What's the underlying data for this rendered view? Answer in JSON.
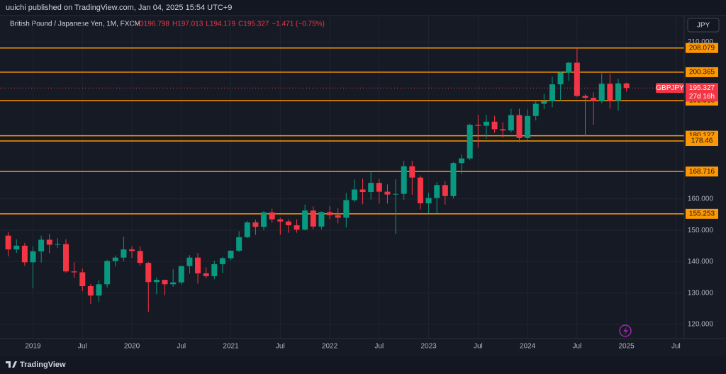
{
  "header": {
    "published": "uuichi published on TradingView.com, Jan 04, 2025 15:54 UTC+9"
  },
  "footer": {
    "brand": "TradingView"
  },
  "chart_data": {
    "type": "candlestick",
    "title": "British Pound / Japanese Yen, 1M, FXCM",
    "legend_values": [
      "O196.798",
      "H197.013",
      "L194.179",
      "C195.327",
      "−1.471 (−0.75%)"
    ],
    "currency": "JPY",
    "symbol": "GBPJPY",
    "countdown": "27d 16h",
    "up_color": "#089981",
    "down_color": "#f23645",
    "level_color": "#ff9800",
    "grid": true,
    "x": [
      "2018-10",
      "2018-11",
      "2018-12",
      "2019-01",
      "2019-02",
      "2019-03",
      "2019-04",
      "2019-05",
      "2019-06",
      "2019-07",
      "2019-08",
      "2019-09",
      "2019-10",
      "2019-11",
      "2019-12",
      "2020-01",
      "2020-02",
      "2020-03",
      "2020-04",
      "2020-05",
      "2020-06",
      "2020-07",
      "2020-08",
      "2020-09",
      "2020-10",
      "2020-11",
      "2020-12",
      "2021-01",
      "2021-02",
      "2021-03",
      "2021-04",
      "2021-05",
      "2021-06",
      "2021-07",
      "2021-08",
      "2021-09",
      "2021-10",
      "2021-11",
      "2021-12",
      "2022-01",
      "2022-02",
      "2022-03",
      "2022-04",
      "2022-05",
      "2022-06",
      "2022-07",
      "2022-08",
      "2022-09",
      "2022-10",
      "2022-11",
      "2022-12",
      "2023-01",
      "2023-02",
      "2023-03",
      "2023-04",
      "2023-05",
      "2023-06",
      "2023-07",
      "2023-08",
      "2023-09",
      "2023-10",
      "2023-11",
      "2023-12",
      "2024-01",
      "2024-02",
      "2024-03",
      "2024-04",
      "2024-05",
      "2024-06",
      "2024-07",
      "2024-08",
      "2024-09",
      "2024-10",
      "2024-11",
      "2024-12",
      "2025-01"
    ],
    "open": [
      148.3,
      143.9,
      145.1,
      139.8,
      143.3,
      147.0,
      145.4,
      145.6,
      136.9,
      136.6,
      132.2,
      129.2,
      132.8,
      140.2,
      141.3,
      143.9,
      143.4,
      139.6,
      133.5,
      134.2,
      132.8,
      133.4,
      138.6,
      141.3,
      136.3,
      135.4,
      139.2,
      141.1,
      143.5,
      147.8,
      152.5,
      151.1,
      155.7,
      153.5,
      152.8,
      151.6,
      150.2,
      156.3,
      151.2,
      155.8,
      154.8,
      154.0,
      159.6,
      163.0,
      162.2,
      165.1,
      162.3,
      161.4,
      161.6,
      170.4,
      166.8,
      158.6,
      160.3,
      164.4,
      160.9,
      171.4,
      172.9,
      183.6,
      183.3,
      184.6,
      182.2,
      181.8,
      186.7,
      179.4,
      186.4,
      190.3,
      191.1,
      196.5,
      200.2,
      203.4,
      192.8,
      192.2,
      191.1,
      196.7,
      191.3,
      196.798
    ],
    "high": [
      149.5,
      147.1,
      146.0,
      144.8,
      148.3,
      148.8,
      147.5,
      147.1,
      139.8,
      137.8,
      132.9,
      134.1,
      140.6,
      142.0,
      147.9,
      144.9,
      144.9,
      139.9,
      135.0,
      134.3,
      137.6,
      138.7,
      142.1,
      142.8,
      138.2,
      140.3,
      141.5,
      143.6,
      149.7,
      153.0,
      153.4,
      156.1,
      156.9,
      154.0,
      153.5,
      153.5,
      158.2,
      157.6,
      156.0,
      157.7,
      157.0,
      161.9,
      166.2,
      166.5,
      168.7,
      166.3,
      164.6,
      166.3,
      172.1,
      172.1,
      167.5,
      162.0,
      165.3,
      165.7,
      171.7,
      174.2,
      184.0,
      186.8,
      186.8,
      186.5,
      184.4,
      188.7,
      188.7,
      188.5,
      191.3,
      193.5,
      198.9,
      200.6,
      203.6,
      208.1,
      193.3,
      194.0,
      200.0,
      199.8,
      198.2,
      197.013
    ],
    "low": [
      141.7,
      142.8,
      138.7,
      131.5,
      139.7,
      142.7,
      144.4,
      136.5,
      134.8,
      130.6,
      126.6,
      127.2,
      131.8,
      138.5,
      140.1,
      141.2,
      138.8,
      124.0,
      129.6,
      129.3,
      132.0,
      132.7,
      136.2,
      133.0,
      134.7,
      134.4,
      136.4,
      140.5,
      143.1,
      147.5,
      148.5,
      150.0,
      152.4,
      148.5,
      149.2,
      149.2,
      150.0,
      150.4,
      150.3,
      153.5,
      152.2,
      150.9,
      159.0,
      158.3,
      159.8,
      158.5,
      158.5,
      148.8,
      159.7,
      161.3,
      156.7,
      155.4,
      155.3,
      158.2,
      160.2,
      167.9,
      172.3,
      176.3,
      179.2,
      181.0,
      179.5,
      181.2,
      178.0,
      178.7,
      185.0,
      188.6,
      189.2,
      191.3,
      197.6,
      192.5,
      180.0,
      183.6,
      190.5,
      188.8,
      188.1,
      194.179
    ],
    "close": [
      143.9,
      145.1,
      139.8,
      143.3,
      147.0,
      145.4,
      145.6,
      136.9,
      136.6,
      132.2,
      129.2,
      132.8,
      140.2,
      141.3,
      143.9,
      143.4,
      139.6,
      133.5,
      134.2,
      132.8,
      133.4,
      138.6,
      141.3,
      136.3,
      135.4,
      139.2,
      141.1,
      143.5,
      147.8,
      152.5,
      151.1,
      155.7,
      153.5,
      152.8,
      151.6,
      150.2,
      156.3,
      151.2,
      155.8,
      154.8,
      154.0,
      159.6,
      163.0,
      162.2,
      165.1,
      162.3,
      161.4,
      161.6,
      170.4,
      166.8,
      158.6,
      160.3,
      164.4,
      160.9,
      171.4,
      172.9,
      183.6,
      183.3,
      184.6,
      182.2,
      181.8,
      186.7,
      179.4,
      186.4,
      190.3,
      191.1,
      196.5,
      200.2,
      203.4,
      192.8,
      192.2,
      191.1,
      196.7,
      191.3,
      196.8,
      195.327
    ],
    "last_price": 195.327,
    "levels": [
      208.079,
      200.365,
      191.318,
      180.127,
      178.46,
      168.716,
      155.253
    ],
    "xlim": [
      "2018-09",
      "2025-08"
    ],
    "xticks": [
      {
        "value": "2019-01",
        "label": "2019"
      },
      {
        "value": "2019-07",
        "label": "Jul"
      },
      {
        "value": "2020-01",
        "label": "2020"
      },
      {
        "value": "2020-07",
        "label": "Jul"
      },
      {
        "value": "2021-01",
        "label": "2021"
      },
      {
        "value": "2021-07",
        "label": "Jul"
      },
      {
        "value": "2022-01",
        "label": "2022"
      },
      {
        "value": "2022-07",
        "label": "Jul"
      },
      {
        "value": "2023-01",
        "label": "2023"
      },
      {
        "value": "2023-07",
        "label": "Jul"
      },
      {
        "value": "2024-01",
        "label": "2024"
      },
      {
        "value": "2024-07",
        "label": "Jul"
      },
      {
        "value": "2025-01",
        "label": "2025"
      },
      {
        "value": "2025-07",
        "label": "Jul"
      }
    ],
    "ylim": [
      115.5,
      218.4
    ],
    "yticks": [
      {
        "value": 120,
        "label": "120.000"
      },
      {
        "value": 130,
        "label": "130.000"
      },
      {
        "value": 140,
        "label": "140.000"
      },
      {
        "value": 150,
        "label": "150.000"
      },
      {
        "value": 160,
        "label": "160.000"
      },
      {
        "value": 210,
        "label": "210.000"
      }
    ]
  }
}
